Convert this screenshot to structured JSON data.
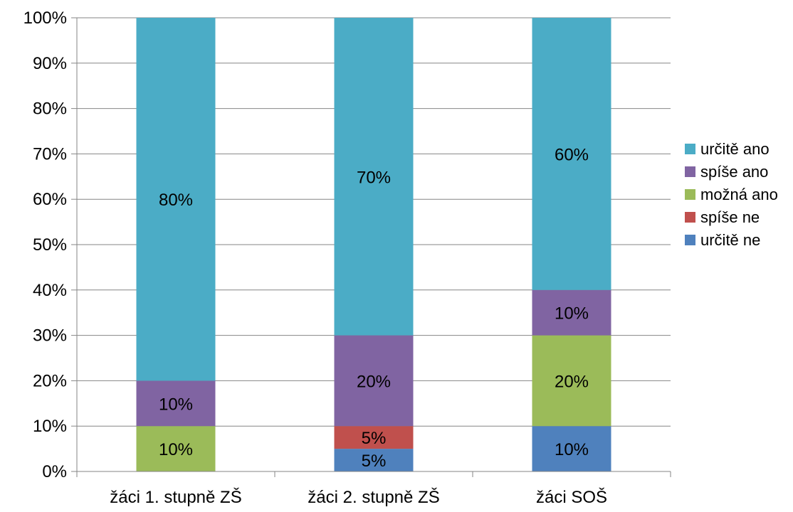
{
  "chart_data": {
    "type": "bar",
    "stacked": true,
    "percent": true,
    "categories": [
      "žáci 1. stupně ZŠ",
      "žáci 2. stupně ZŠ",
      "žáci SOŠ"
    ],
    "series": [
      {
        "name": "určitě ne",
        "color": "#4F81BD",
        "values": [
          0,
          5,
          10
        ]
      },
      {
        "name": "spíše ne",
        "color": "#C0504D",
        "values": [
          0,
          5,
          0
        ]
      },
      {
        "name": "možná ano",
        "color": "#9BBB59",
        "values": [
          10,
          0,
          20
        ]
      },
      {
        "name": "spíše ano",
        "color": "#8064A2",
        "values": [
          10,
          20,
          10
        ]
      },
      {
        "name": "určitě ano",
        "color": "#4BACC6",
        "values": [
          80,
          70,
          60
        ]
      }
    ],
    "data_labels": true,
    "ylim": [
      0,
      100
    ],
    "yticks": [
      0,
      10,
      20,
      30,
      40,
      50,
      60,
      70,
      80,
      90,
      100
    ],
    "ytick_labels": [
      "0%",
      "10%",
      "20%",
      "30%",
      "40%",
      "50%",
      "60%",
      "70%",
      "80%",
      "90%",
      "100%"
    ],
    "grid": true,
    "legend_position": "right",
    "legend_order": [
      "určitě ano",
      "spíše ano",
      "možná ano",
      "spíše ne",
      "určitě ne"
    ],
    "title": "",
    "xlabel": "",
    "ylabel": ""
  }
}
